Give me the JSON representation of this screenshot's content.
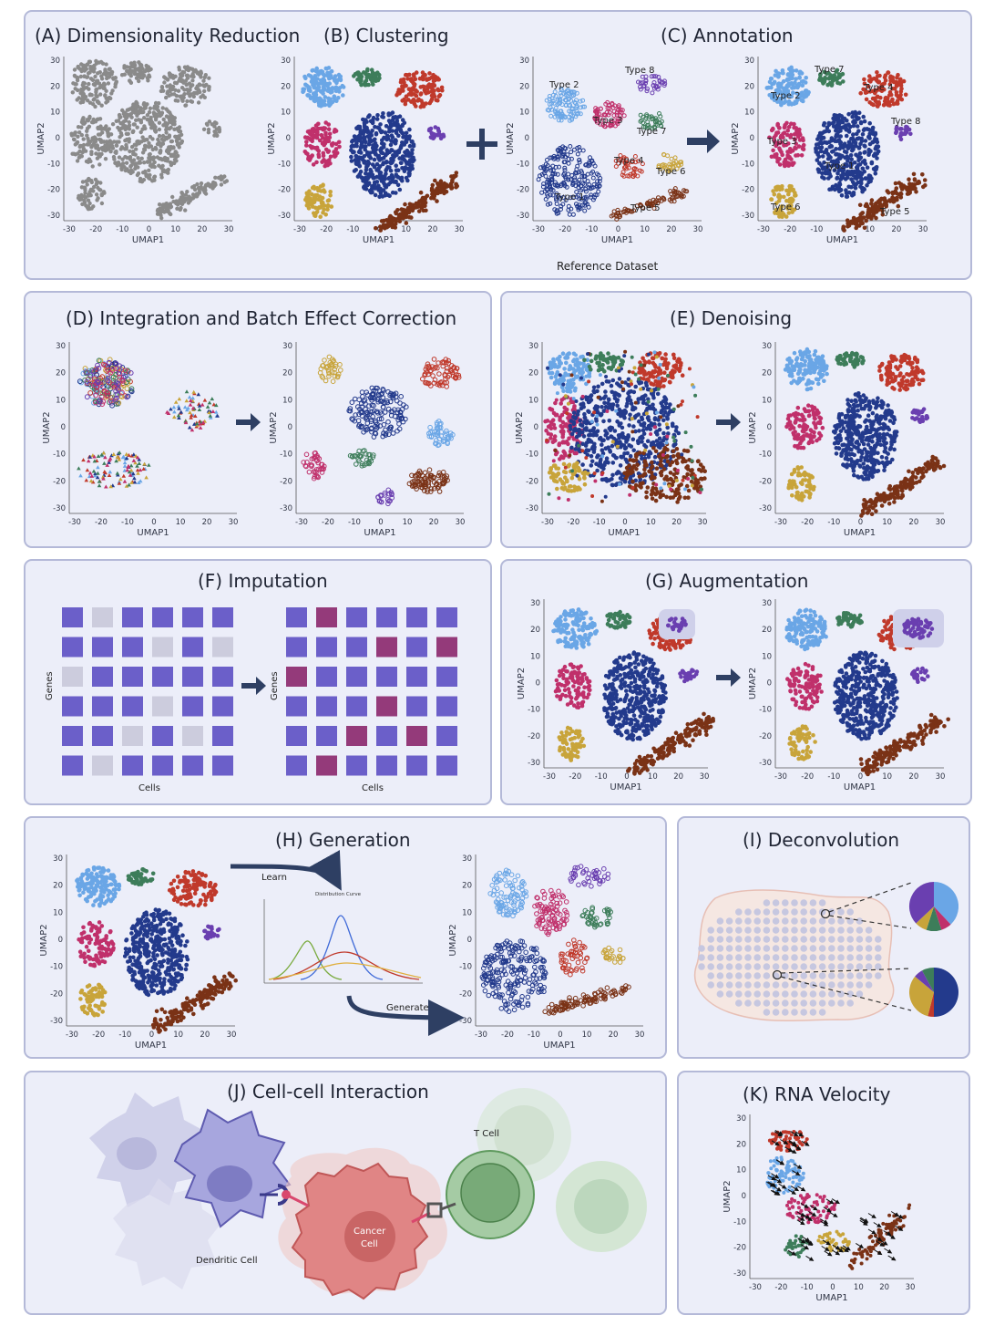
{
  "colors": {
    "panel_bg": "#eceef9",
    "panel_border": "#b4b9d8",
    "grey": "#8a8a8a",
    "lightblue": "#6aa6e6",
    "green": "#3d7d5a",
    "red": "#c0392b",
    "purple": "#6a3fb0",
    "magenta": "#c0306b",
    "navy": "#233a8c",
    "yellow": "#c8a43a",
    "brown": "#7a3216",
    "matrix_blue": "#6b5fc9",
    "matrix_grey": "#ccccdd",
    "matrix_magenta": "#943a7a"
  },
  "axes": {
    "x_label": "UMAP1",
    "y_label": "UMAP2",
    "ticks": [
      "30",
      "20",
      "10",
      "0",
      "-10",
      "-20",
      "-30"
    ],
    "x_ticks": [
      "-30",
      "-20",
      "-10",
      "0",
      "10",
      "20",
      "30"
    ]
  },
  "panels": {
    "A": {
      "title": "(A) Dimensionality Reduction"
    },
    "B": {
      "title": "(B) Clustering"
    },
    "C": {
      "title": "(C) Annotation",
      "reference_caption": "Reference Dataset",
      "types": [
        "Type 1",
        "Type 2",
        "Type 3",
        "Type 4",
        "Type 5",
        "Type 6",
        "Type 7",
        "Type 8"
      ]
    },
    "D": {
      "title": "(D) Integration and Batch Effect Correction"
    },
    "E": {
      "title": "(E) Denoising"
    },
    "F": {
      "title": "(F) Imputation",
      "x_label": "Cells",
      "y_label": "Genes"
    },
    "G": {
      "title": "(G) Augmentation"
    },
    "H": {
      "title": "(H) Generation",
      "learn": "Learn",
      "generate": "Generate",
      "curve_label": "Distribution Curve"
    },
    "I": {
      "title": "(I) Deconvolution"
    },
    "J": {
      "title": "(J) Cell-cell Interaction",
      "t_cell": "T Cell",
      "cancer_cell_1": "Cancer",
      "cancer_cell_2": "Cell",
      "dendritic_cell": "Dendritic Cell"
    },
    "K": {
      "title": "(K) RNA Velocity"
    }
  }
}
